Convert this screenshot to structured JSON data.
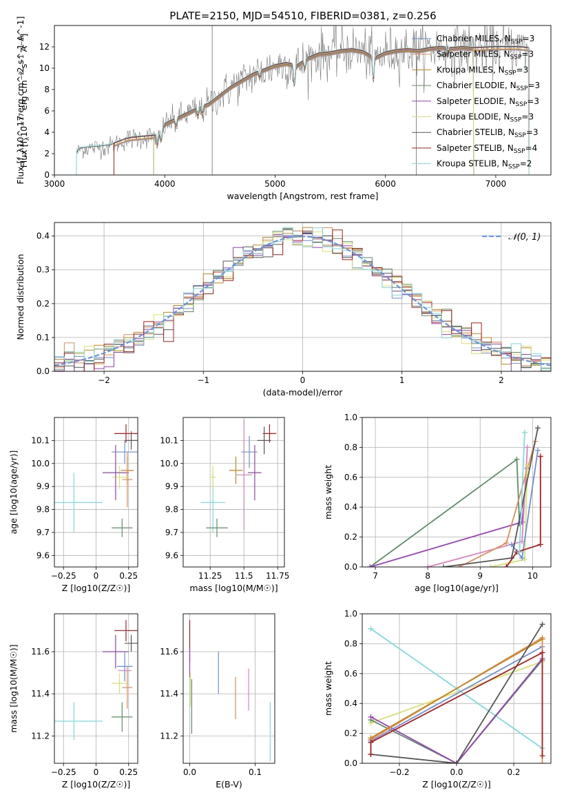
{
  "title": "PLATE=2150, MJD=54510, FIBERID=0381, z=0.256",
  "colors": {
    "Chabrier MILES": "#6a8ee0",
    "Salpeter MILES": "#e38d55",
    "Kroupa MILES": "#c98419",
    "Chabrier ELODIE": "#5a8f62",
    "Salpeter ELODIE": "#9a3fc0",
    "Kroupa ELODIE": "#d6e36a",
    "Chabrier STELIB": "#555555",
    "Salpeter STELIB": "#b31b1b",
    "Kroupa STELIB": "#7fdbde",
    "pink": "#e080c0",
    "normal_curve": "#6495ed",
    "data_spectrum": "#777777",
    "grid": "#b0b0b0"
  },
  "chart_data": [
    {
      "type": "line",
      "xlabel": "wavelength [Angstrom, rest frame]",
      "ylabel": "Flux [f_λ10^-17 erg cm^-2 s^-1 A^-1]",
      "xlim": [
        3000,
        7500
      ],
      "ylim": [
        0,
        14
      ],
      "xticks": [
        3000,
        4000,
        5000,
        6000,
        7000
      ],
      "yticks": [
        0,
        2,
        4,
        6,
        8,
        10,
        12
      ],
      "grid": false,
      "legend_position": "top-right",
      "legend": [
        {
          "label": "Chabrier MILES, N_SSP=3",
          "key": "Chabrier MILES"
        },
        {
          "label": "Salpeter MILES, N_SSP=3",
          "key": "Salpeter MILES"
        },
        {
          "label": "Kroupa MILES, N_SSP=3",
          "key": "Kroupa MILES"
        },
        {
          "label": "Chabrier ELODIE, N_SSP=3",
          "key": "Chabrier ELODIE"
        },
        {
          "label": "Salpeter ELODIE, N_SSP=3",
          "key": "Salpeter ELODIE"
        },
        {
          "label": "Kroupa ELODIE, N_SSP=3",
          "key": "Kroupa ELODIE"
        },
        {
          "label": "Chabrier STELIB, N_SSP=3",
          "key": "Chabrier STELIB"
        },
        {
          "label": "Salpeter STELIB, N_SSP=4",
          "key": "Salpeter STELIB"
        },
        {
          "label": "Kroupa STELIB, N_SSP=2",
          "key": "Kroupa STELIB"
        }
      ],
      "continuum": [
        [
          3200,
          2.0
        ],
        [
          3230,
          2.4
        ],
        [
          3300,
          2.5
        ],
        [
          3400,
          2.6
        ],
        [
          3500,
          2.7
        ],
        [
          3550,
          2.9
        ],
        [
          3650,
          3.3
        ],
        [
          3700,
          3.4
        ],
        [
          3800,
          3.5
        ],
        [
          3900,
          3.6
        ],
        [
          3950,
          3.7
        ],
        [
          4000,
          4.7
        ],
        [
          4100,
          5.2
        ],
        [
          4200,
          5.7
        ],
        [
          4300,
          6.2
        ],
        [
          4400,
          6.6
        ],
        [
          4500,
          7.4
        ],
        [
          4600,
          8.2
        ],
        [
          4700,
          8.8
        ],
        [
          4800,
          9.4
        ],
        [
          4900,
          9.8
        ],
        [
          5000,
          10.2
        ],
        [
          5100,
          10.4
        ],
        [
          5200,
          10.2
        ],
        [
          5300,
          10.9
        ],
        [
          5400,
          11.3
        ],
        [
          5500,
          11.4
        ],
        [
          5600,
          11.6
        ],
        [
          5700,
          11.7
        ],
        [
          5800,
          11.5
        ],
        [
          5900,
          10.9
        ],
        [
          6000,
          11.4
        ],
        [
          6100,
          11.6
        ],
        [
          6200,
          11.7
        ],
        [
          6300,
          11.6
        ],
        [
          6400,
          11.8
        ],
        [
          6500,
          11.9
        ],
        [
          6600,
          11.8
        ],
        [
          6700,
          11.9
        ],
        [
          6800,
          11.8
        ],
        [
          7000,
          11.9
        ],
        [
          7200,
          11.9
        ],
        [
          7300,
          11.8
        ]
      ],
      "absorption_lines": [
        [
          3933,
          1.0
        ],
        [
          3968,
          0.9
        ],
        [
          4102,
          0.7
        ],
        [
          4300,
          0.8
        ],
        [
          4340,
          0.7
        ],
        [
          4861,
          0.6
        ],
        [
          5175,
          2.0
        ],
        [
          5270,
          0.8
        ],
        [
          5890,
          2.2
        ],
        [
          6563,
          0.7
        ]
      ],
      "model_starts": {
        "Chabrier MILES": 3540,
        "Salpeter MILES": 3540,
        "Kroupa MILES": 3540,
        "Chabrier ELODIE": 3900,
        "Salpeter ELODIE": 3900,
        "Kroupa ELODIE": 3900,
        "Chabrier STELIB": 3200,
        "Salpeter STELIB": 3540,
        "Kroupa STELIB": 3200
      },
      "model_ends": {
        "Chabrier MILES": 7300,
        "Salpeter MILES": 7300,
        "Kroupa MILES": 7300,
        "Chabrier ELODIE": 6800,
        "Salpeter ELODIE": 6800,
        "Kroupa ELODIE": 6800,
        "Chabrier STELIB": 7300,
        "Salpeter STELIB": 7300,
        "Kroupa STELIB": 7300
      }
    },
    {
      "type": "histogram",
      "xlabel": "(data-model)/error",
      "ylabel": "Normed distribution",
      "xlim": [
        -2.5,
        2.5
      ],
      "ylim": [
        0,
        0.44
      ],
      "xticks": [
        -2,
        -1,
        0,
        1,
        2
      ],
      "yticks": [
        0.0,
        0.1,
        0.2,
        0.3,
        0.4
      ],
      "grid": true,
      "legend_position": "top-right",
      "legend": [
        {
          "label": "𝒩(0, 1)",
          "key": "normal_curve"
        }
      ],
      "bin_width": 0.1,
      "series_order": [
        "Chabrier MILES",
        "Salpeter MILES",
        "Kroupa MILES",
        "Chabrier ELODIE",
        "Salpeter ELODIE",
        "Kroupa ELODIE",
        "Chabrier STELIB",
        "Salpeter STELIB",
        "Kroupa STELIB"
      ]
    },
    {
      "type": "scatter",
      "xlabel": "Z [log10(Z/Z☉)]",
      "ylabel": "age  [log10(age/yr)]",
      "xlim": [
        -0.32,
        0.32
      ],
      "ylim": [
        9.55,
        10.2
      ],
      "xticks": [
        -0.25,
        0.0,
        0.25
      ],
      "yticks": [
        9.6,
        9.7,
        9.8,
        9.9,
        10.0,
        10.1
      ],
      "grid": true,
      "points": [
        {
          "key": "Kroupa STELIB",
          "x": -0.17,
          "xerr": 0.22,
          "y": 9.83,
          "yerr": 0.13
        },
        {
          "key": "Chabrier ELODIE",
          "x": 0.2,
          "xerr": 0.08,
          "y": 9.72,
          "yerr": 0.04
        },
        {
          "key": "Kroupa ELODIE",
          "x": 0.18,
          "xerr": 0.06,
          "y": 9.94,
          "yerr": 0.05
        },
        {
          "key": "Salpeter ELODIE",
          "x": 0.15,
          "xerr": 0.1,
          "y": 9.96,
          "yerr": 0.12
        },
        {
          "key": "Kroupa MILES",
          "x": 0.24,
          "xerr": 0.05,
          "y": 9.97,
          "yerr": 0.06
        },
        {
          "key": "Salpeter MILES",
          "x": 0.24,
          "xerr": 0.04,
          "y": 9.93,
          "yerr": 0.12
        },
        {
          "key": "Chabrier MILES",
          "x": 0.22,
          "xerr": 0.1,
          "y": 10.05,
          "yerr": 0.05
        },
        {
          "key": "Salpeter STELIB",
          "x": 0.23,
          "xerr": 0.09,
          "y": 10.13,
          "yerr": 0.04
        },
        {
          "key": "Chabrier STELIB",
          "x": 0.27,
          "xerr": 0.05,
          "y": 10.1,
          "yerr": 0.04
        }
      ]
    },
    {
      "type": "scatter",
      "xlabel": "mass [log10(M/M☉)]",
      "ylabel": "",
      "xlim": [
        11.05,
        11.8
      ],
      "ylim": [
        9.55,
        10.2
      ],
      "xticks": [
        11.25,
        11.5,
        11.75
      ],
      "yticks": [
        9.6,
        9.7,
        9.8,
        9.9,
        10.0,
        10.1
      ],
      "grid": true,
      "points": [
        {
          "key": "Kroupa STELIB",
          "x": 11.27,
          "xerr": 0.09,
          "y": 9.83,
          "yerr": 0.13
        },
        {
          "key": "Chabrier ELODIE",
          "x": 11.3,
          "xerr": 0.08,
          "y": 9.72,
          "yerr": 0.04
        },
        {
          "key": "Kroupa ELODIE",
          "x": 11.27,
          "xerr": 0.02,
          "y": 9.94,
          "yerr": 0.05
        },
        {
          "key": "Salpeter ELODIE",
          "x": 11.58,
          "xerr": 0.05,
          "y": 9.96,
          "yerr": 0.12
        },
        {
          "key": "Kroupa MILES",
          "x": 11.44,
          "xerr": 0.05,
          "y": 9.97,
          "yerr": 0.06
        },
        {
          "key": "pink",
          "x": 11.5,
          "xerr": 0.06,
          "y": 9.95,
          "yerr": 0.24
        },
        {
          "key": "Chabrier MILES",
          "x": 11.54,
          "xerr": 0.06,
          "y": 10.05,
          "yerr": 0.07
        },
        {
          "key": "Salpeter STELIB",
          "x": 11.69,
          "xerr": 0.05,
          "y": 10.13,
          "yerr": 0.04
        },
        {
          "key": "Chabrier STELIB",
          "x": 11.65,
          "xerr": 0.05,
          "y": 10.1,
          "yerr": 0.06
        }
      ]
    },
    {
      "type": "line",
      "xlabel": "age  [log10(age/yr)]",
      "ylabel": "mass weight",
      "xlim": [
        6.75,
        10.35
      ],
      "ylim": [
        0,
        1.0
      ],
      "xticks": [
        7,
        8,
        9,
        10
      ],
      "yticks": [
        0.0,
        0.2,
        0.4,
        0.6,
        0.8,
        1.0
      ],
      "grid": true,
      "series": [
        {
          "key": "Chabrier ELODIE",
          "x": [
            6.9,
            9.7,
            9.75
          ],
          "y": [
            0.0,
            0.72,
            0.29
          ]
        },
        {
          "key": "Salpeter ELODIE",
          "x": [
            6.9,
            9.8,
            9.9
          ],
          "y": [
            0.0,
            0.3,
            0.66
          ]
        },
        {
          "key": "pink",
          "x": [
            8.0,
            9.8,
            9.9
          ],
          "y": [
            0.0,
            0.17,
            0.8
          ]
        },
        {
          "key": "Salpeter MILES",
          "x": [
            8.6,
            9.5,
            10.05
          ],
          "y": [
            0.0,
            0.16,
            0.84
          ]
        },
        {
          "key": "Kroupa ELODIE",
          "x": [
            9.2,
            9.85,
            9.9
          ],
          "y": [
            0.0,
            0.05,
            0.68
          ]
        },
        {
          "key": "Chabrier MILES",
          "x": [
            9.6,
            9.8,
            10.1
          ],
          "y": [
            0.15,
            0.06,
            0.78
          ]
        },
        {
          "key": "Chabrier STELIB",
          "x": [
            8.3,
            9.6,
            10.1
          ],
          "y": [
            0.0,
            0.06,
            0.93
          ]
        },
        {
          "key": "Salpeter STELIB",
          "x": [
            9.5,
            9.7,
            10.15,
            10.15
          ],
          "y": [
            0.0,
            0.1,
            0.15,
            0.74
          ]
        },
        {
          "key": "Kroupa STELIB",
          "x": [
            9.75,
            9.85
          ],
          "y": [
            0.1,
            0.9
          ]
        }
      ]
    },
    {
      "type": "scatter",
      "xlabel": "Z [log10(Z/Z☉)]",
      "ylabel": "mass [log10(M/M☉)]",
      "xlim": [
        -0.32,
        0.32
      ],
      "ylim": [
        11.07,
        11.78
      ],
      "xticks": [
        -0.25,
        0.0,
        0.25
      ],
      "yticks": [
        11.2,
        11.4,
        11.6
      ],
      "grid": true,
      "points": [
        {
          "key": "Kroupa STELIB",
          "x": -0.17,
          "xerr": 0.22,
          "y": 11.27,
          "yerr": 0.09
        },
        {
          "key": "Chabrier ELODIE",
          "x": 0.2,
          "xerr": 0.08,
          "y": 11.29,
          "yerr": 0.07
        },
        {
          "key": "Kroupa ELODIE",
          "x": 0.18,
          "xerr": 0.06,
          "y": 11.45,
          "yerr": 0.05
        },
        {
          "key": "Salpeter ELODIE",
          "x": 0.15,
          "xerr": 0.1,
          "y": 11.6,
          "yerr": 0.08
        },
        {
          "key": "Salpeter MILES",
          "x": 0.24,
          "xerr": 0.04,
          "y": 11.43,
          "yerr": 0.1
        },
        {
          "key": "pink",
          "x": 0.22,
          "xerr": 0.05,
          "y": 11.51,
          "yerr": 0.05
        },
        {
          "key": "Chabrier MILES",
          "x": 0.22,
          "xerr": 0.06,
          "y": 11.53,
          "yerr": 0.07
        },
        {
          "key": "Salpeter STELIB",
          "x": 0.23,
          "xerr": 0.09,
          "y": 11.7,
          "yerr": 0.05
        },
        {
          "key": "Chabrier STELIB",
          "x": 0.27,
          "xerr": 0.05,
          "y": 11.64,
          "yerr": 0.04
        }
      ]
    },
    {
      "type": "scatter",
      "xlabel": "E(B-V)",
      "ylabel": "",
      "xlim": [
        -0.01,
        0.13
      ],
      "ylim": [
        11.07,
        11.78
      ],
      "xticks": [
        0.0,
        0.1
      ],
      "yticks": [
        11.2,
        11.4,
        11.6
      ],
      "grid": true,
      "points": [
        {
          "key": "Salpeter STELIB",
          "x": 0.0,
          "xerr": 0,
          "y": 11.65,
          "yerr": 0.1
        },
        {
          "key": "Salpeter ELODIE",
          "x": 0.0,
          "xerr": 0,
          "y": 11.55,
          "yerr": 0.07
        },
        {
          "key": "Kroupa ELODIE",
          "x": 0.001,
          "xerr": 0,
          "y": 11.42,
          "yerr": 0.08
        },
        {
          "key": "Chabrier ELODIE",
          "x": 0.003,
          "xerr": 0,
          "y": 11.34,
          "yerr": 0.13
        },
        {
          "key": "Chabrier MILES",
          "x": 0.044,
          "xerr": 0,
          "y": 11.5,
          "yerr": 0.1
        },
        {
          "key": "Salpeter MILES",
          "x": 0.07,
          "xerr": 0,
          "y": 11.38,
          "yerr": 0.1
        },
        {
          "key": "pink",
          "x": 0.09,
          "xerr": 0,
          "y": 11.42,
          "yerr": 0.1
        },
        {
          "key": "Kroupa STELIB",
          "x": 0.123,
          "xerr": 0,
          "y": 11.22,
          "yerr": 0.14
        }
      ]
    },
    {
      "type": "line",
      "xlabel": "Z [log10(Z/Z☉)]",
      "ylabel": "mass weight",
      "xlim": [
        -0.33,
        0.33
      ],
      "ylim": [
        0,
        1.0
      ],
      "xticks": [
        -0.2,
        0.0,
        0.2
      ],
      "yticks": [
        0.0,
        0.2,
        0.4,
        0.6,
        0.8,
        1.0
      ],
      "grid": true,
      "series": [
        {
          "key": "Kroupa STELIB",
          "x": [
            -0.3,
            0.3
          ],
          "y": [
            0.9,
            0.1
          ]
        },
        {
          "key": "Kroupa ELODIE",
          "x": [
            -0.3,
            0.3
          ],
          "y": [
            0.27,
            0.68
          ]
        },
        {
          "key": "Chabrier ELODIE",
          "x": [
            -0.3,
            0.0,
            0.3
          ],
          "y": [
            0.29,
            0.0,
            0.69
          ]
        },
        {
          "key": "Salpeter ELODIE",
          "x": [
            -0.3,
            0.0,
            0.3
          ],
          "y": [
            0.31,
            0.0,
            0.7
          ]
        },
        {
          "key": "Chabrier MILES",
          "x": [
            -0.3,
            0.3
          ],
          "y": [
            0.15,
            0.78
          ]
        },
        {
          "key": "Salpeter MILES",
          "x": [
            -0.3,
            0.3,
            0.3
          ],
          "y": [
            0.16,
            0.84,
            0.0
          ]
        },
        {
          "key": "Kroupa MILES",
          "x": [
            -0.3,
            0.3
          ],
          "y": [
            0.17,
            0.83
          ]
        },
        {
          "key": "Chabrier STELIB",
          "x": [
            -0.3,
            0.0,
            0.3
          ],
          "y": [
            0.06,
            0.0,
            0.93
          ]
        },
        {
          "key": "Salpeter STELIB",
          "x": [
            -0.3,
            -0.3,
            0.3,
            0.3
          ],
          "y": [
            0.06,
            0.14,
            0.74,
            0.05
          ]
        }
      ]
    }
  ]
}
